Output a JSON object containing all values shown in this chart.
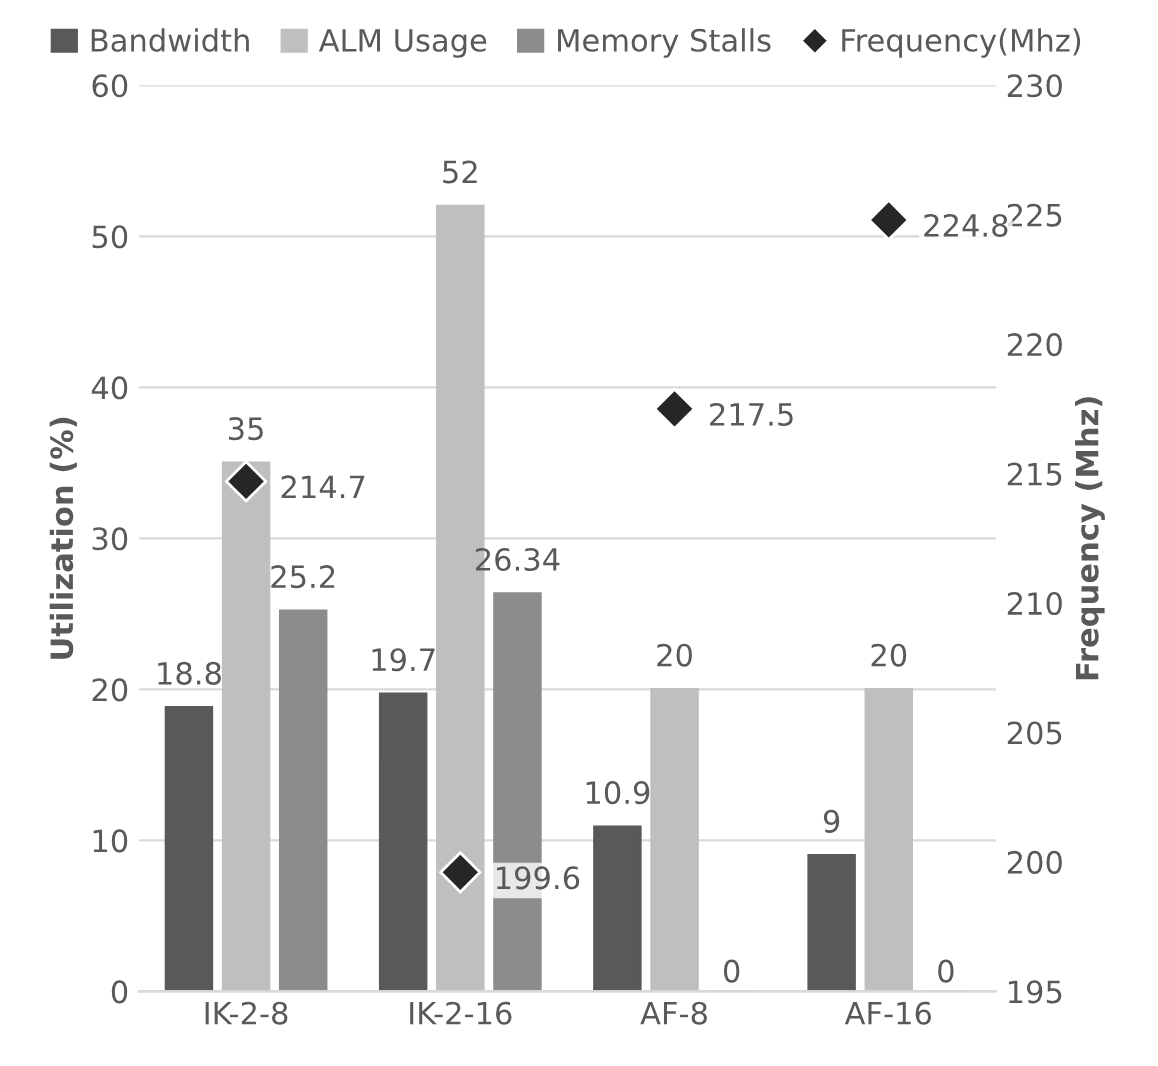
{
  "chart_data": {
    "type": "bar",
    "categories": [
      "IK-2-8",
      "IK-2-16",
      "AF-8",
      "AF-16"
    ],
    "series": [
      {
        "name": "Bandwidth",
        "color": "#595959",
        "values": [
          18.8,
          19.7,
          10.9,
          9
        ]
      },
      {
        "name": "ALM Usage",
        "color": "#bfbfbf",
        "values": [
          35,
          52,
          20,
          20
        ]
      },
      {
        "name": "Memory Stalls",
        "color": "#8c8c8c",
        "values": [
          25.2,
          26.34,
          0,
          0
        ]
      },
      {
        "name": "Frequency(Mhz)",
        "color": "#262626",
        "type": "scatter",
        "axis": "y2",
        "values": [
          214.7,
          199.6,
          217.5,
          224.8
        ]
      }
    ],
    "ylabel": "Utilization (%)",
    "y2label": "Frequency (Mhz)",
    "ylim": [
      0,
      60
    ],
    "yticks": [
      0,
      10,
      20,
      30,
      40,
      50,
      60
    ],
    "y2lim": [
      195,
      230
    ],
    "y2ticks": [
      195,
      200,
      205,
      210,
      215,
      220,
      225,
      230
    ],
    "grid": "y",
    "legend": "top",
    "marker": "diamond",
    "data_labels": true
  }
}
